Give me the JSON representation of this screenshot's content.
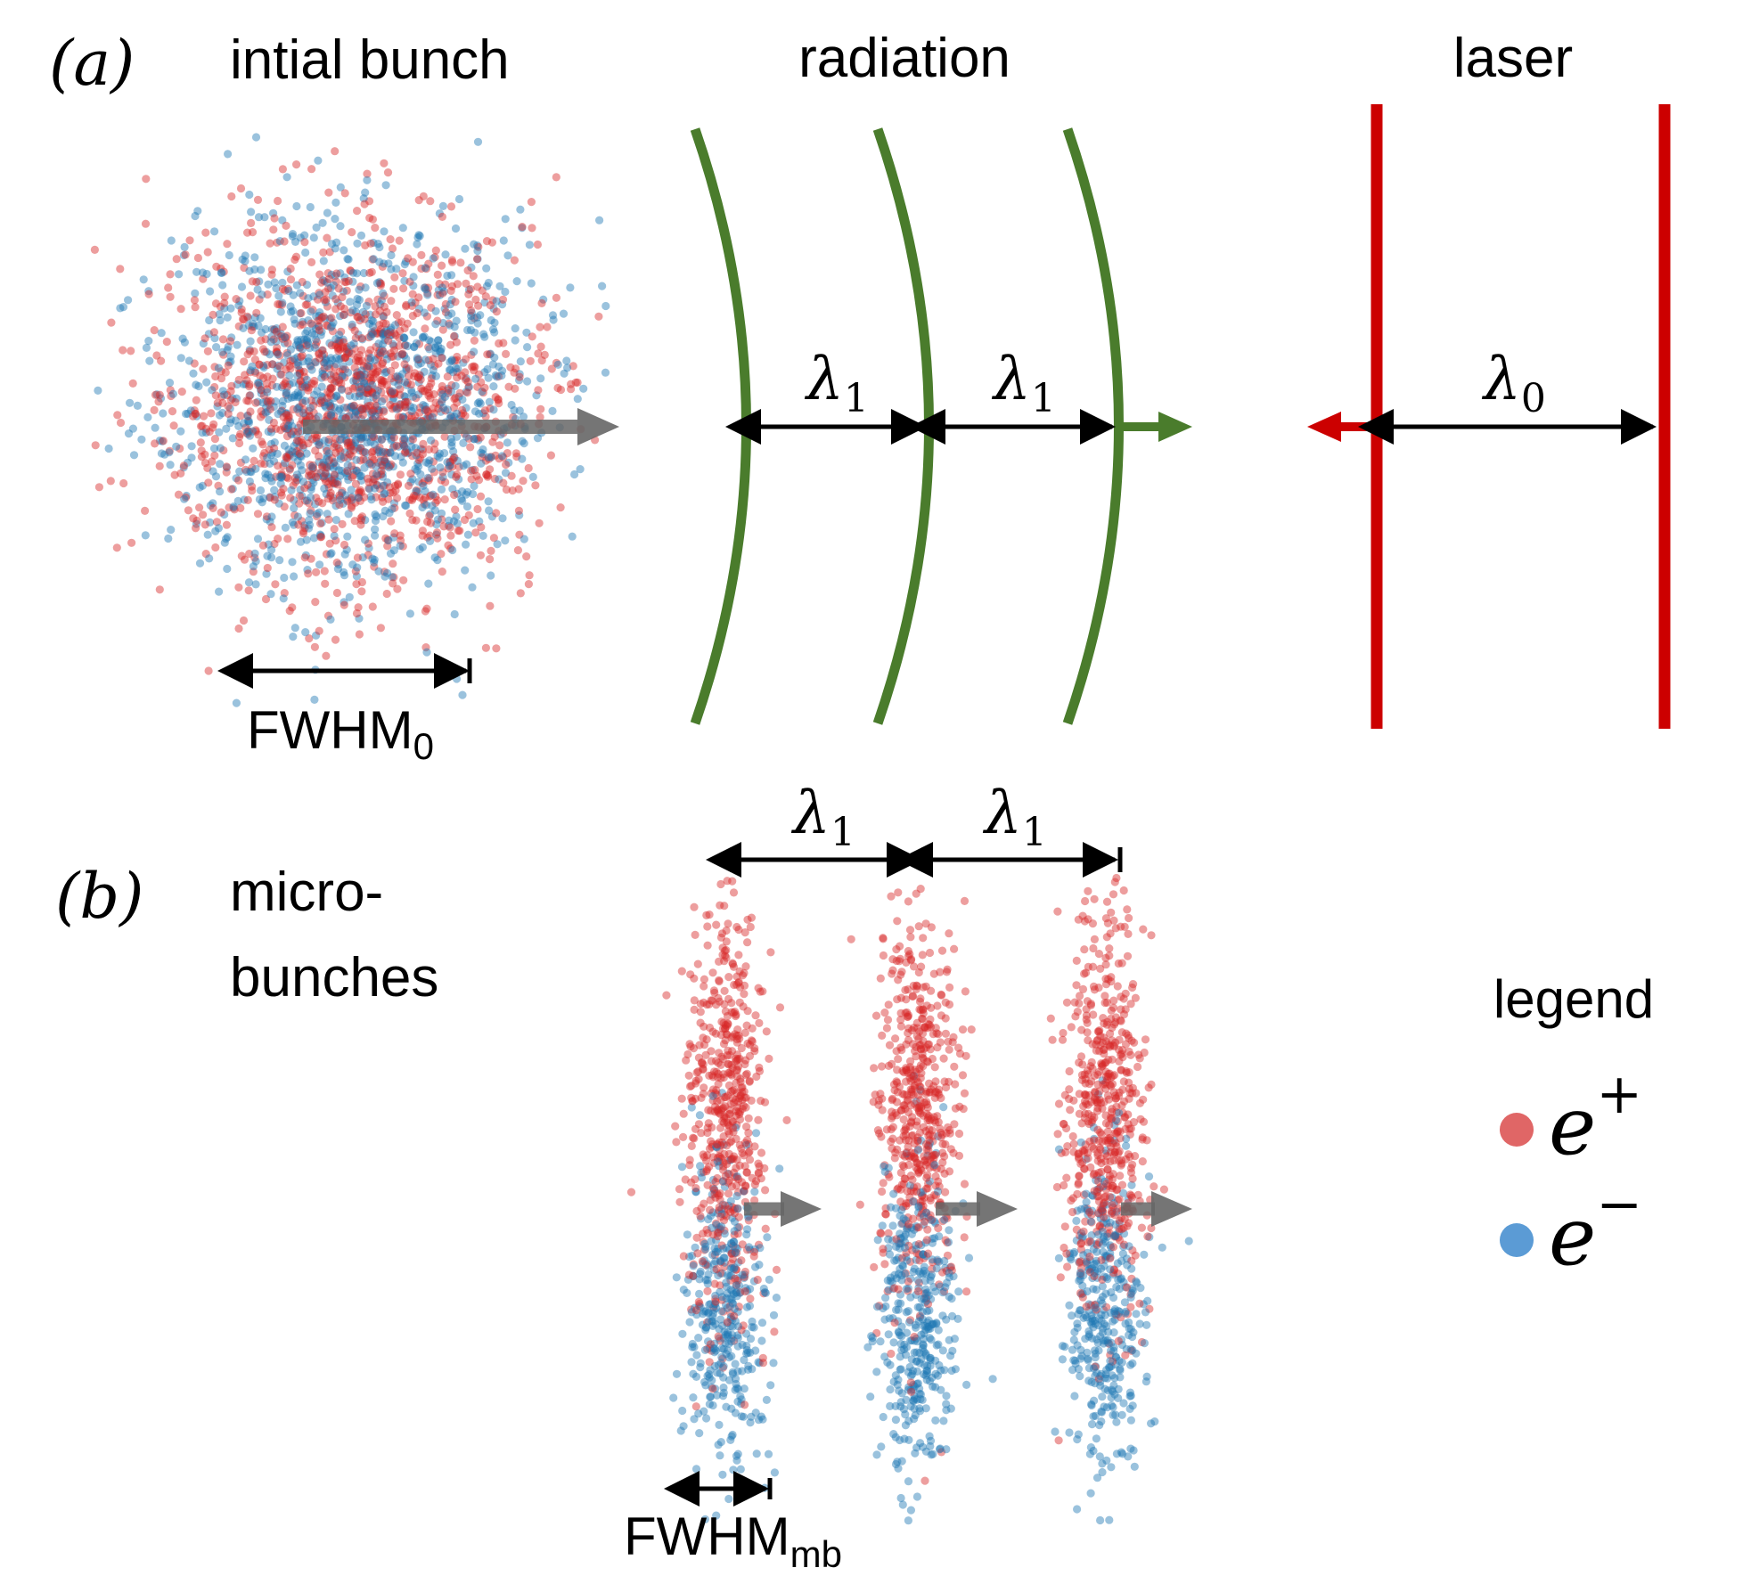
{
  "panels": {
    "a": {
      "tag_open": "(",
      "tag_letter": "a",
      "tag_close": ")",
      "bunch_label": "intial bunch",
      "radiation_label": "radiation",
      "laser_label": "laser",
      "radiation_spacing": {
        "symbol": "λ",
        "subscript": "1"
      },
      "laser_spacing": {
        "symbol": "λ",
        "subscript": "0"
      },
      "bunch_width": {
        "text": "FWHM",
        "subscript": "0"
      }
    },
    "b": {
      "tag_open": "(",
      "tag_letter": "b",
      "tag_close": ")",
      "label_line1": "micro-",
      "label_line2": "bunches",
      "spacing": {
        "symbol": "λ",
        "subscript": "1"
      },
      "microbunch_width": {
        "text": "FWHM",
        "subscript": "mb"
      }
    }
  },
  "legend": {
    "title": "legend",
    "items": [
      {
        "name": "positron",
        "symbol": "e",
        "superscript": "+",
        "color": "#e06666"
      },
      {
        "name": "electron",
        "symbol": "e",
        "superscript": "−",
        "color": "#5b9bd5"
      }
    ]
  },
  "colors": {
    "positron": "#d62728",
    "electron": "#1f77b4",
    "radiation": "#4a7c2c",
    "laser": "#cc0000",
    "propagation_arrow": "#666666",
    "dimension": "#000000"
  },
  "icons": {
    "propagation_arrow": "arrow-right-icon",
    "laser_direction": "arrow-left-icon",
    "dimension_arrow": "double-headed-arrow-icon"
  }
}
